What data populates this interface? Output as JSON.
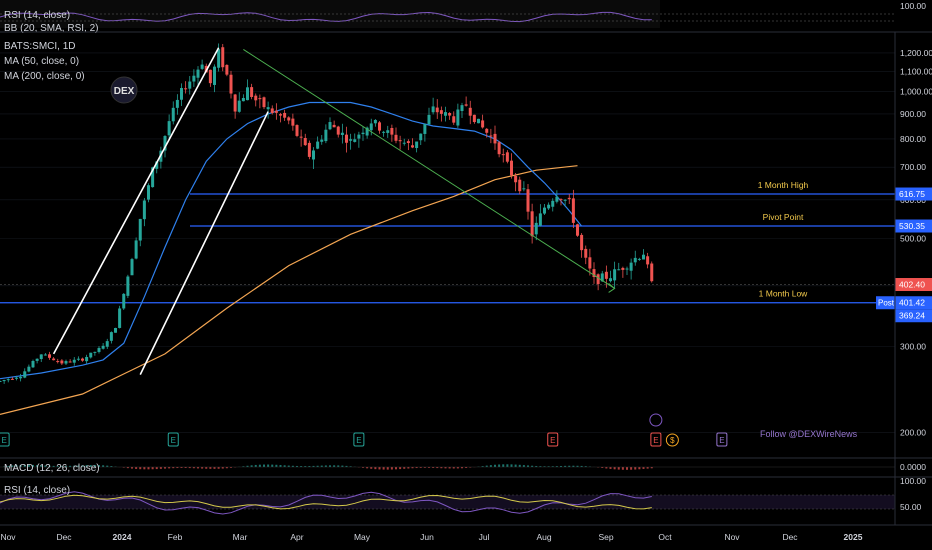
{
  "chart_data": {
    "type": "candlestick",
    "symbol_label": "BATS:SMCI, 1D",
    "indicator_labels": {
      "rsi_top": "RSI (14, close)",
      "bb_top": "BB (20, SMA, RSI, 2)",
      "ma50": "MA (50, close, 0)",
      "ma200": "MA (200, close, 0)",
      "macd": "MACD (12, 26, close)",
      "rsi_bottom": "RSI (14, close)"
    },
    "watermark": "DEX",
    "credit": "Follow @DEXWireNews",
    "y_axis": {
      "scale": "log",
      "range": [
        180,
        1300
      ],
      "ticks": [
        1200,
        1100,
        1000,
        900,
        800,
        700,
        600,
        500,
        400,
        300,
        200
      ],
      "tick_labels": [
        "1,200.00",
        "1,100.00",
        "1,000.00",
        "900.00",
        "800.00",
        "700.00",
        "600.00",
        "500.00",
        "400.00",
        "300.00",
        "200.00"
      ]
    },
    "x_axis": {
      "months": [
        "Nov",
        "Dec",
        "2024",
        "Feb",
        "Mar",
        "Apr",
        "May",
        "Jun",
        "Jul",
        "Aug",
        "Sep",
        "Oct",
        "Nov",
        "Dec",
        "2025"
      ]
    },
    "levels": [
      {
        "name": "1 Month High",
        "value": 616.75,
        "label": "616.75"
      },
      {
        "name": "Pivot Point",
        "value": 530.35,
        "label": "530.35"
      },
      {
        "name": "1 Month Low",
        "value": 369.24,
        "label": "369.24"
      }
    ],
    "price_labels": {
      "current": "402.40",
      "post": "401.42",
      "post_tag": "Post"
    },
    "rsi_top_scale": "100.00",
    "macd_scale": "0.0000",
    "rsi_bottom_scale": [
      "100.00",
      "50.00"
    ],
    "earnings_markers": [
      "E",
      "E",
      "E",
      "E",
      "E",
      "E"
    ],
    "dividend_marker": "$",
    "price_path": [
      [
        0,
        255
      ],
      [
        5,
        262
      ],
      [
        10,
        290
      ],
      [
        15,
        278
      ],
      [
        20,
        283
      ],
      [
        25,
        300
      ],
      [
        28,
        330
      ],
      [
        31,
        420
      ],
      [
        34,
        550
      ],
      [
        37,
        690
      ],
      [
        39,
        760
      ],
      [
        41,
        870
      ],
      [
        44,
        1000
      ],
      [
        47,
        1080
      ],
      [
        49,
        1150
      ],
      [
        51,
        1040
      ],
      [
        53,
        1200
      ],
      [
        55,
        1080
      ],
      [
        57,
        930
      ],
      [
        60,
        1010
      ],
      [
        62,
        960
      ],
      [
        65,
        920
      ],
      [
        70,
        870
      ],
      [
        75,
        740
      ],
      [
        80,
        860
      ],
      [
        85,
        790
      ],
      [
        90,
        870
      ],
      [
        95,
        810
      ],
      [
        100,
        770
      ],
      [
        105,
        920
      ],
      [
        110,
        880
      ],
      [
        113,
        940
      ],
      [
        116,
        860
      ],
      [
        120,
        790
      ],
      [
        124,
        680
      ],
      [
        127,
        620
      ],
      [
        129,
        510
      ],
      [
        132,
        580
      ],
      [
        135,
        620
      ],
      [
        138,
        590
      ],
      [
        141,
        470
      ],
      [
        144,
        410
      ],
      [
        148,
        420
      ],
      [
        153,
        450
      ],
      [
        156,
        468
      ],
      [
        158,
        402
      ]
    ],
    "ma50_path": [
      [
        0,
        258
      ],
      [
        10,
        265
      ],
      [
        20,
        275
      ],
      [
        25,
        282
      ],
      [
        30,
        305
      ],
      [
        35,
        380
      ],
      [
        40,
        480
      ],
      [
        45,
        600
      ],
      [
        50,
        720
      ],
      [
        55,
        800
      ],
      [
        60,
        860
      ],
      [
        65,
        900
      ],
      [
        70,
        930
      ],
      [
        75,
        950
      ],
      [
        80,
        950
      ],
      [
        85,
        950
      ],
      [
        90,
        930
      ],
      [
        95,
        900
      ],
      [
        100,
        870
      ],
      [
        105,
        850
      ],
      [
        110,
        840
      ],
      [
        115,
        830
      ],
      [
        120,
        800
      ],
      [
        124,
        760
      ],
      [
        128,
        700
      ],
      [
        132,
        650
      ],
      [
        135,
        610
      ],
      [
        138,
        570
      ],
      [
        141,
        530
      ]
    ],
    "ma200_path": [
      [
        0,
        218
      ],
      [
        20,
        240
      ],
      [
        40,
        290
      ],
      [
        55,
        360
      ],
      [
        70,
        440
      ],
      [
        85,
        510
      ],
      [
        100,
        570
      ],
      [
        110,
        610
      ],
      [
        120,
        660
      ],
      [
        130,
        690
      ],
      [
        140,
        705
      ]
    ],
    "trendlines": [
      {
        "name": "channel-upper",
        "from": [
          13,
          290
        ],
        "to": [
          53,
          1230
        ]
      },
      {
        "name": "channel-lower",
        "from": [
          34,
          263
        ],
        "to": [
          65,
          910
        ]
      },
      {
        "name": "descending-resistance",
        "from": [
          59,
          1220
        ],
        "to": [
          149,
          395
        ]
      }
    ],
    "x_extent": [
      0,
      205
    ]
  }
}
